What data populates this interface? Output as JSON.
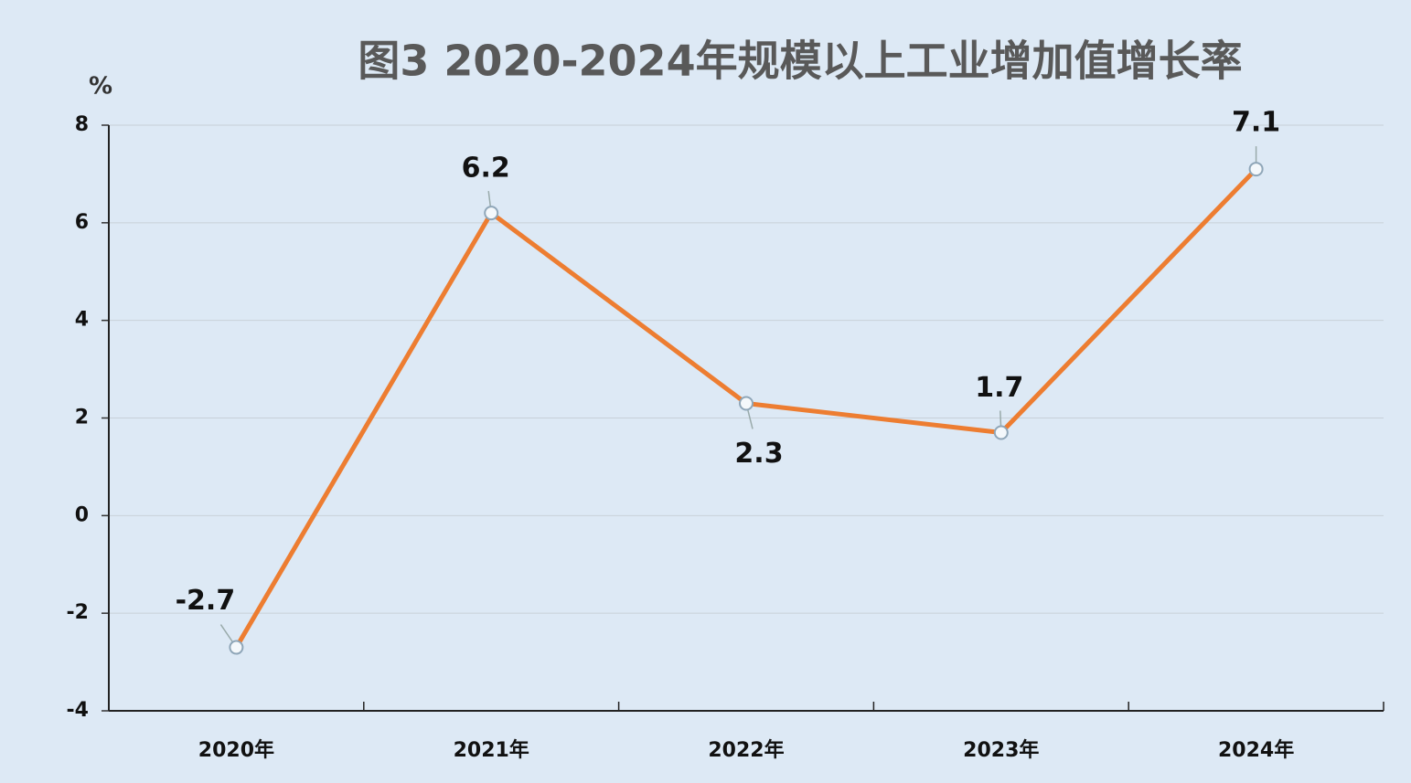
{
  "chart_data": {
    "type": "line",
    "title": "图3  2020-2024年规模以上工业增加值增长率",
    "y_label": "%",
    "categories": [
      "2020年",
      "2021年",
      "2022年",
      "2023年",
      "2024年"
    ],
    "series": [
      {
        "name": "规模以上工业增加值增长率",
        "color": "#ed7d31",
        "values": [
          -2.7,
          6.2,
          2.3,
          1.7,
          7.1
        ]
      }
    ],
    "ylim": [
      -4,
      8
    ],
    "yticks": [
      -4,
      -2,
      0,
      2,
      4,
      6,
      8
    ],
    "grid": true
  }
}
